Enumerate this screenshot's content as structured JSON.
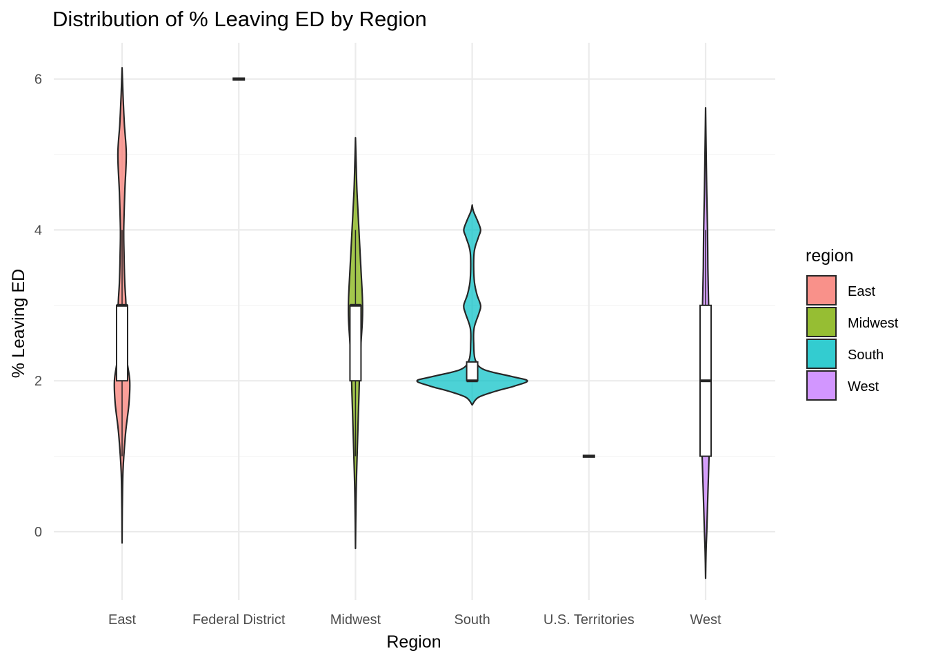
{
  "chart_data": {
    "type": "violin",
    "title": "Distribution of % Leaving ED by Region",
    "xlabel": "Region",
    "ylabel": "% Leaving ED",
    "categories": [
      "East",
      "Federal District",
      "Midwest",
      "South",
      "U.S. Territories",
      "West"
    ],
    "y_ticks": [
      "0",
      "2",
      "4",
      "6"
    ],
    "ylim": [
      -0.9,
      6.5
    ],
    "legend": {
      "title": "region",
      "position": "right",
      "entries": [
        {
          "label": "East",
          "color": "#F8766D"
        },
        {
          "label": "Midwest",
          "color": "#7CAE00"
        },
        {
          "label": "South",
          "color": "#00BFC4"
        },
        {
          "label": "West",
          "color": "#C77CFF"
        }
      ]
    },
    "series": [
      {
        "category": "East",
        "fill": "#F8766D",
        "y_min": -0.15,
        "y_max": 6.15,
        "density": [
          [
            -0.15,
            0
          ],
          [
            0.3,
            0.3
          ],
          [
            0.8,
            1.2
          ],
          [
            1.3,
            4.5
          ],
          [
            1.7,
            9
          ],
          [
            2.0,
            10
          ],
          [
            2.3,
            6
          ],
          [
            2.7,
            4
          ],
          [
            3.0,
            5
          ],
          [
            3.3,
            3.5
          ],
          [
            3.7,
            2.5
          ],
          [
            4.0,
            2.2
          ],
          [
            4.5,
            3.5
          ],
          [
            5.0,
            5.5
          ],
          [
            5.4,
            3
          ],
          [
            5.8,
            1.2
          ],
          [
            6.15,
            0
          ]
        ],
        "box": {
          "q1": 2,
          "median": 3,
          "q3": 3,
          "whisker_low": 1,
          "whisker_high": 4
        }
      },
      {
        "category": "Federal District",
        "fill": "#F8766D",
        "single_value": 6
      },
      {
        "category": "Midwest",
        "fill": "#7CAE00",
        "y_min": -0.22,
        "y_max": 5.22,
        "density": [
          [
            -0.22,
            0
          ],
          [
            0.3,
            0.5
          ],
          [
            0.8,
            1.5
          ],
          [
            1.3,
            3
          ],
          [
            1.8,
            4.5
          ],
          [
            2.3,
            6
          ],
          [
            2.8,
            9
          ],
          [
            3.1,
            9
          ],
          [
            3.5,
            7
          ],
          [
            4.0,
            4.5
          ],
          [
            4.5,
            2
          ],
          [
            4.9,
            0.8
          ],
          [
            5.22,
            0
          ]
        ],
        "box": {
          "q1": 2,
          "median": 3,
          "q3": 3,
          "whisker_low": 1,
          "whisker_high": 4
        }
      },
      {
        "category": "South",
        "fill": "#00BFC4",
        "y_min": 1.68,
        "y_max": 4.33,
        "density": [
          [
            1.68,
            0
          ],
          [
            1.78,
            8
          ],
          [
            1.86,
            30
          ],
          [
            1.93,
            55
          ],
          [
            2.0,
            72
          ],
          [
            2.06,
            50
          ],
          [
            2.15,
            15
          ],
          [
            2.28,
            4
          ],
          [
            2.5,
            2
          ],
          [
            2.7,
            2.5
          ],
          [
            2.9,
            9
          ],
          [
            3.0,
            11
          ],
          [
            3.15,
            6
          ],
          [
            3.35,
            2.5
          ],
          [
            3.7,
            2.5
          ],
          [
            3.9,
            8
          ],
          [
            4.0,
            11
          ],
          [
            4.12,
            7
          ],
          [
            4.25,
            1.5
          ],
          [
            4.33,
            0
          ]
        ],
        "box": {
          "q1": 2,
          "median": 2,
          "q3": 2.25,
          "whisker_low": 2,
          "whisker_high": 2.25
        }
      },
      {
        "category": "U.S. Territories",
        "fill": "#00BFC4",
        "single_value": 1
      },
      {
        "category": "West",
        "fill": "#C77CFF",
        "y_min": -0.62,
        "y_max": 5.62,
        "density": [
          [
            -0.62,
            0
          ],
          [
            -0.3,
            0.5
          ],
          [
            0,
            1.5
          ],
          [
            0.5,
            3
          ],
          [
            1.0,
            4.5
          ],
          [
            1.5,
            5.5
          ],
          [
            2.0,
            6
          ],
          [
            2.5,
            5
          ],
          [
            3.0,
            4
          ],
          [
            3.5,
            3
          ],
          [
            4.0,
            2.5
          ],
          [
            4.5,
            1.5
          ],
          [
            5.0,
            0.8
          ],
          [
            5.62,
            0
          ]
        ],
        "box": {
          "q1": 1,
          "median": 2,
          "q3": 3,
          "whisker_low": 1,
          "whisker_high": 4
        }
      }
    ]
  }
}
